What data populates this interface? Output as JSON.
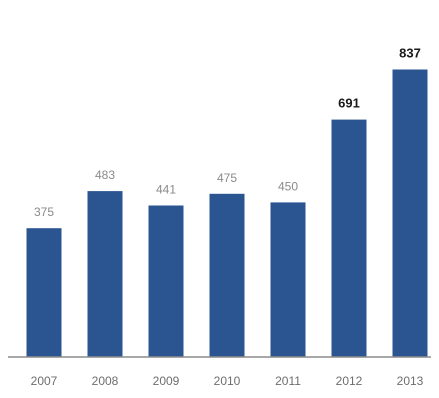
{
  "chart_data": {
    "type": "bar",
    "categories": [
      "2007",
      "2008",
      "2009",
      "2010",
      "2011",
      "2012",
      "2013"
    ],
    "values": [
      375,
      483,
      441,
      475,
      450,
      691,
      837
    ],
    "data_labels": [
      "375",
      "483",
      "441",
      "475",
      "450",
      "691",
      "837"
    ],
    "emphasized_labels": [
      false,
      false,
      false,
      false,
      false,
      true,
      true
    ],
    "title": "",
    "xlabel": "",
    "ylabel": "",
    "ylim": [
      0,
      900
    ],
    "grid": false,
    "legend": "none",
    "bar_color": "#2b5591",
    "axis_color": "#8c8c8c",
    "tick_label_color": "#6e6e6e",
    "data_label_color": "#8a8a8a",
    "emphasized_label_color": "#1a1a1a"
  }
}
